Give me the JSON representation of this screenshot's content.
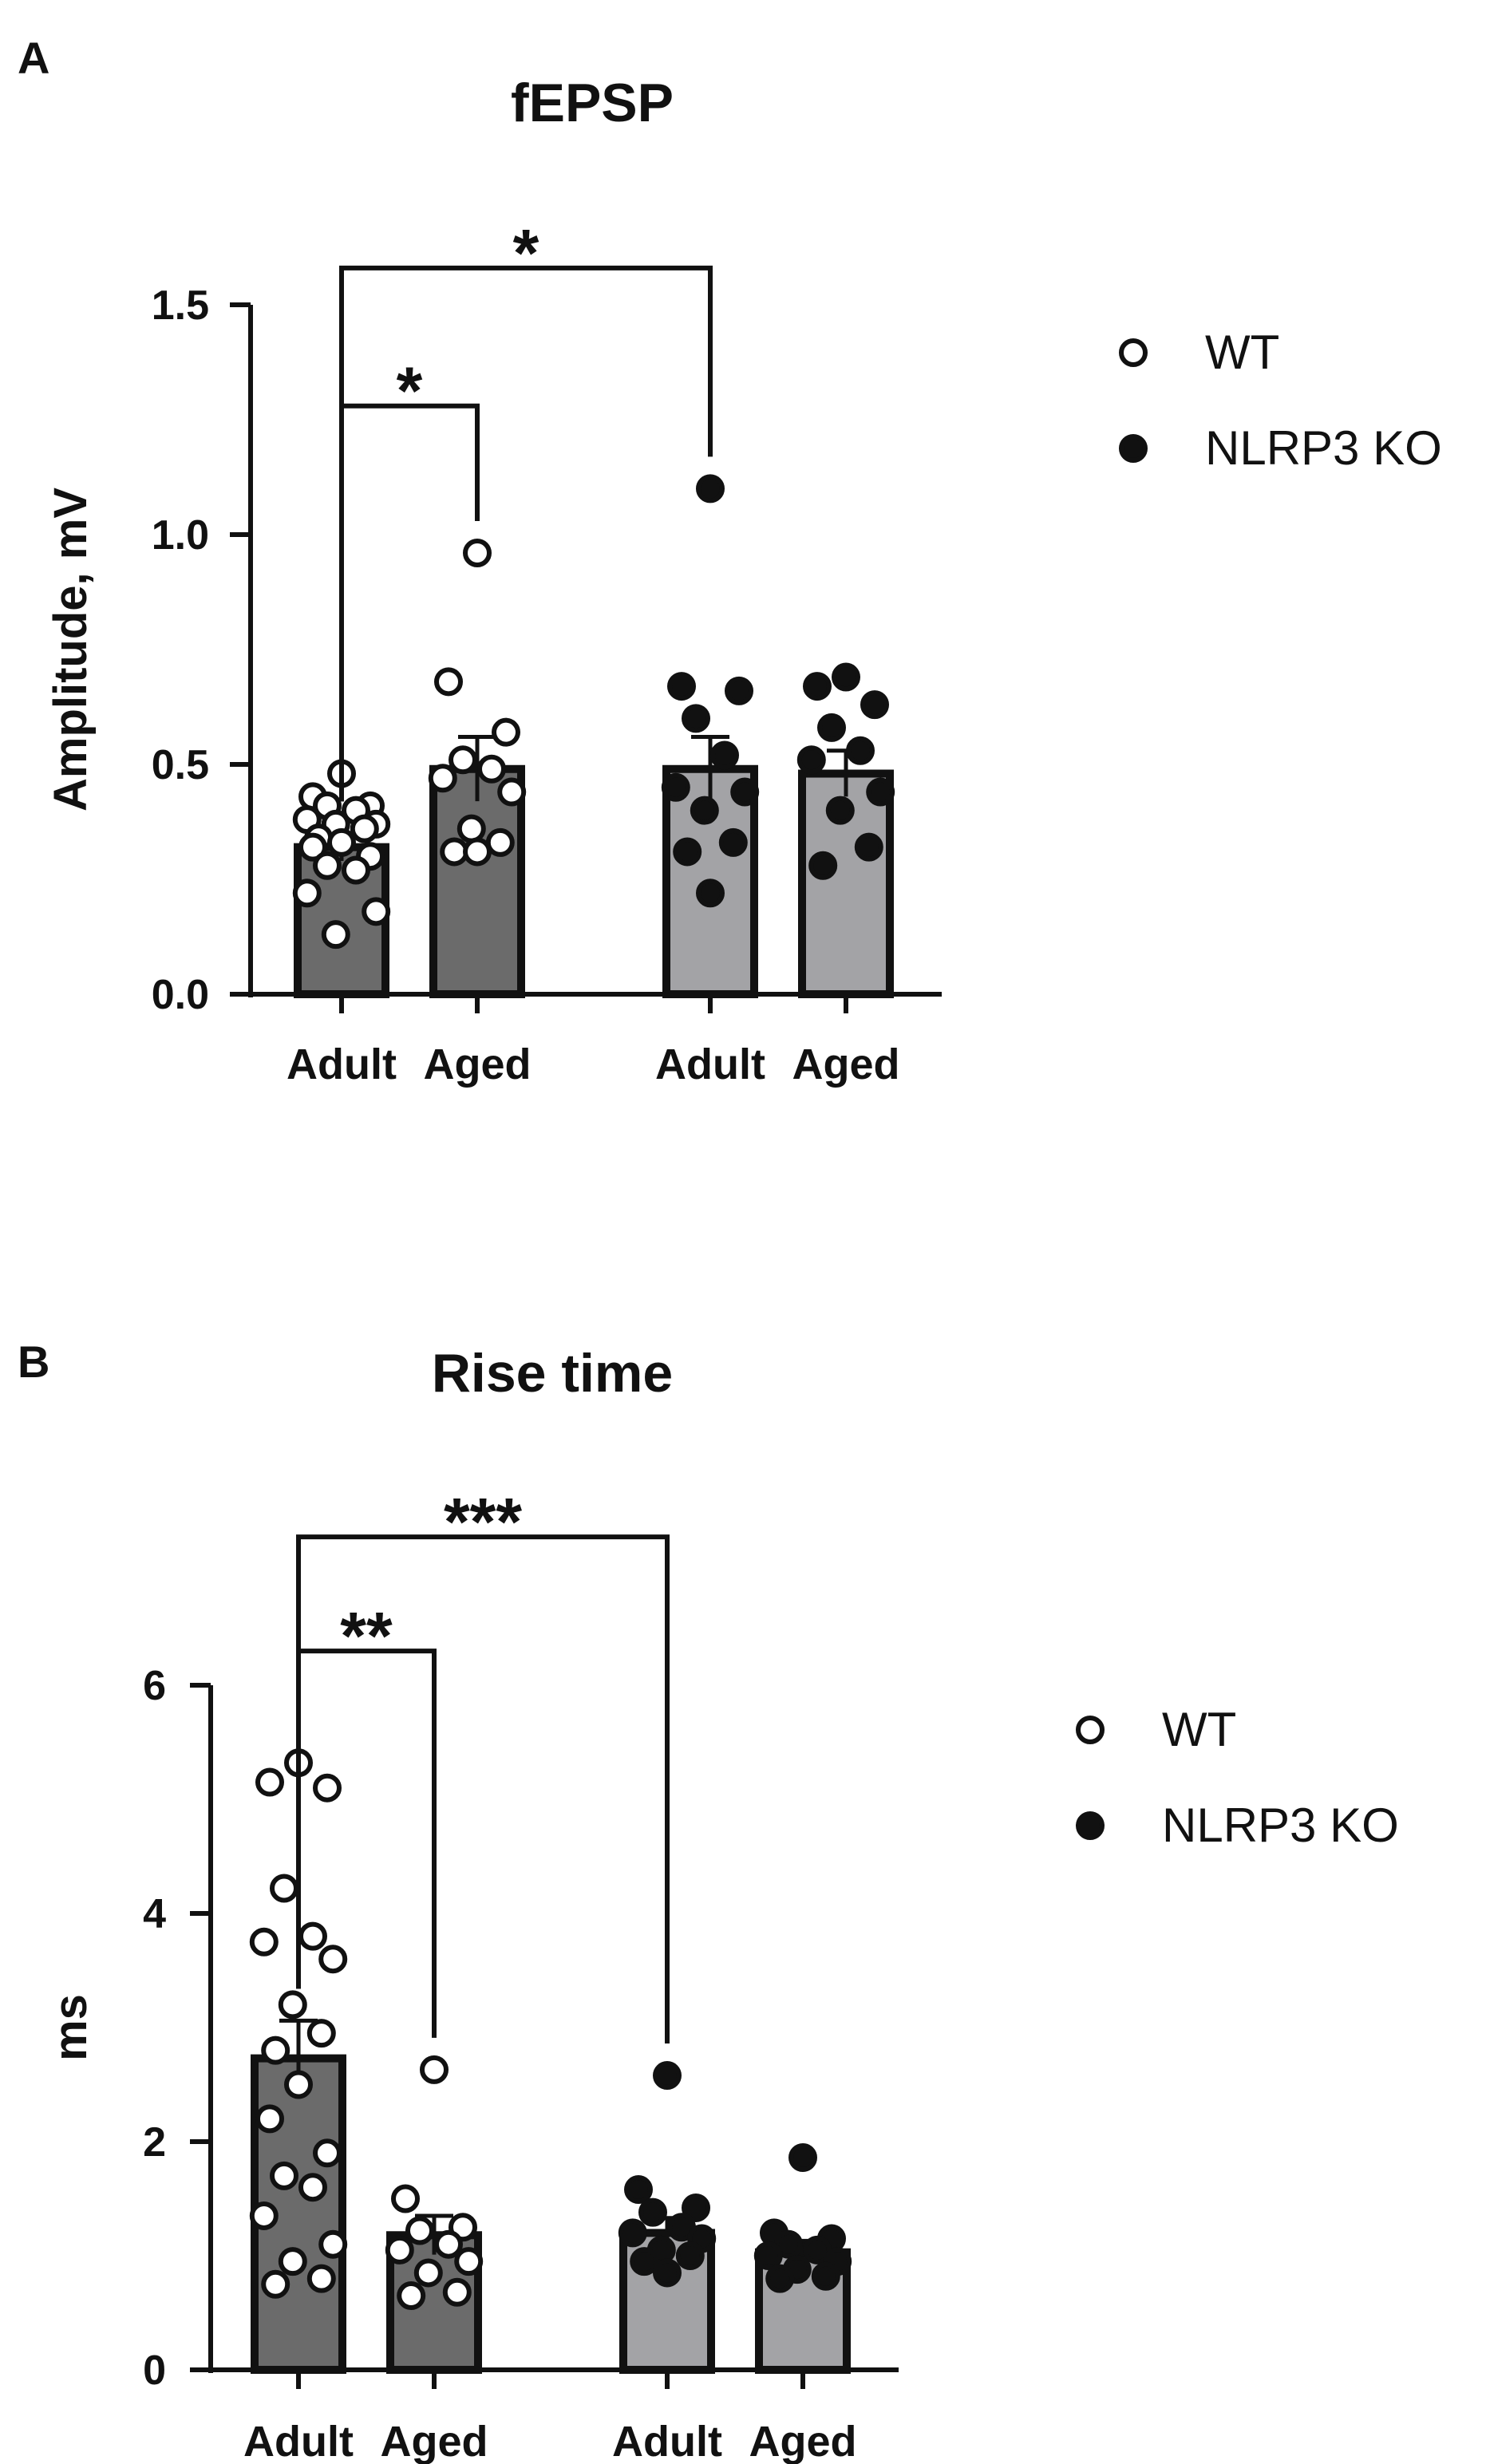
{
  "panels": [
    {
      "letter": "A"
    },
    {
      "letter": "B"
    }
  ],
  "chart_data": [
    {
      "type": "bar",
      "title": "fEPSP",
      "ylabel": "Amplitude, mV",
      "xlabel": "",
      "ylim": [
        0,
        1.5
      ],
      "yticks": [
        0.0,
        0.5,
        1.0,
        1.5
      ],
      "ytick_labels": [
        "0.0",
        "0.5",
        "1.0",
        "1.5"
      ],
      "categories": [
        "Adult",
        "Aged",
        "Adult",
        "Aged"
      ],
      "bar_colors": [
        "#6b6b6b",
        "#6b6b6b",
        "#a3a3a6",
        "#a3a3a6"
      ],
      "bars": [
        {
          "label": "Adult",
          "group": "WT",
          "mean": 0.32,
          "sem": 0.03,
          "points": [
            0.48,
            0.43,
            0.41,
            0.41,
            0.4,
            0.38,
            0.37,
            0.37,
            0.36,
            0.34,
            0.33,
            0.32,
            0.3,
            0.28,
            0.27,
            0.22,
            0.18,
            0.13
          ]
        },
        {
          "label": "Aged",
          "group": "WT",
          "mean": 0.49,
          "sem": 0.07,
          "points": [
            0.96,
            0.68,
            0.57,
            0.51,
            0.49,
            0.47,
            0.44,
            0.36,
            0.33,
            0.31,
            0.31
          ]
        },
        {
          "label": "Adult",
          "group": "NLRP3 KO",
          "mean": 0.49,
          "sem": 0.07,
          "points": [
            1.1,
            0.67,
            0.66,
            0.6,
            0.52,
            0.45,
            0.44,
            0.4,
            0.33,
            0.31,
            0.22
          ]
        },
        {
          "label": "Aged",
          "group": "NLRP3 KO",
          "mean": 0.48,
          "sem": 0.05,
          "points": [
            0.69,
            0.67,
            0.63,
            0.58,
            0.53,
            0.51,
            0.44,
            0.4,
            0.32,
            0.28
          ]
        }
      ],
      "significance": [
        {
          "from": 0,
          "to": 1,
          "label": "*",
          "y": 1.28
        },
        {
          "from": 0,
          "to": 2,
          "label": "*",
          "y": 1.58
        }
      ],
      "legend": {
        "entries": [
          {
            "name": "WT",
            "marker": "open"
          },
          {
            "name": "NLRP3 KO",
            "marker": "filled"
          }
        ],
        "position": "right"
      },
      "grid": false
    },
    {
      "type": "bar",
      "title": "Rise time",
      "ylabel": "ms",
      "xlabel": "",
      "ylim": [
        0,
        6
      ],
      "yticks": [
        0,
        2,
        4,
        6
      ],
      "ytick_labels": [
        "0",
        "2",
        "4",
        "6"
      ],
      "categories": [
        "Adult",
        "Aged",
        "Adult",
        "Aged"
      ],
      "bar_colors": [
        "#6b6b6b",
        "#6b6b6b",
        "#a3a3a6",
        "#a3a3a6"
      ],
      "bars": [
        {
          "label": "Adult",
          "group": "WT",
          "mean": 2.73,
          "sem": 0.33,
          "points": [
            5.32,
            5.15,
            5.1,
            4.22,
            3.8,
            3.75,
            3.6,
            3.2,
            2.95,
            2.8,
            2.5,
            2.2,
            1.9,
            1.7,
            1.6,
            1.35,
            1.1,
            0.95,
            0.8,
            0.75
          ]
        },
        {
          "label": "Aged",
          "group": "WT",
          "mean": 1.18,
          "sem": 0.17,
          "points": [
            2.63,
            1.5,
            1.25,
            1.22,
            1.1,
            1.05,
            0.95,
            0.85,
            0.68,
            0.65
          ]
        },
        {
          "label": "Adult",
          "group": "NLRP3 KO",
          "mean": 1.2,
          "sem": 0.13,
          "points": [
            2.58,
            1.58,
            1.42,
            1.38,
            1.25,
            1.2,
            1.15,
            1.05,
            1.0,
            0.95,
            0.85
          ]
        },
        {
          "label": "Aged",
          "group": "NLRP3 KO",
          "mean": 1.03,
          "sem": 0.1,
          "points": [
            1.86,
            1.2,
            1.15,
            1.1,
            1.05,
            1.0,
            0.95,
            0.88,
            0.82,
            0.8
          ]
        }
      ],
      "significance": [
        {
          "from": 0,
          "to": 1,
          "label": "**",
          "y": 6.3
        },
        {
          "from": 0,
          "to": 2,
          "label": "***",
          "y": 7.3
        }
      ],
      "legend": {
        "entries": [
          {
            "name": "WT",
            "marker": "open"
          },
          {
            "name": "NLRP3 KO",
            "marker": "filled"
          }
        ],
        "position": "right"
      },
      "grid": false
    }
  ]
}
